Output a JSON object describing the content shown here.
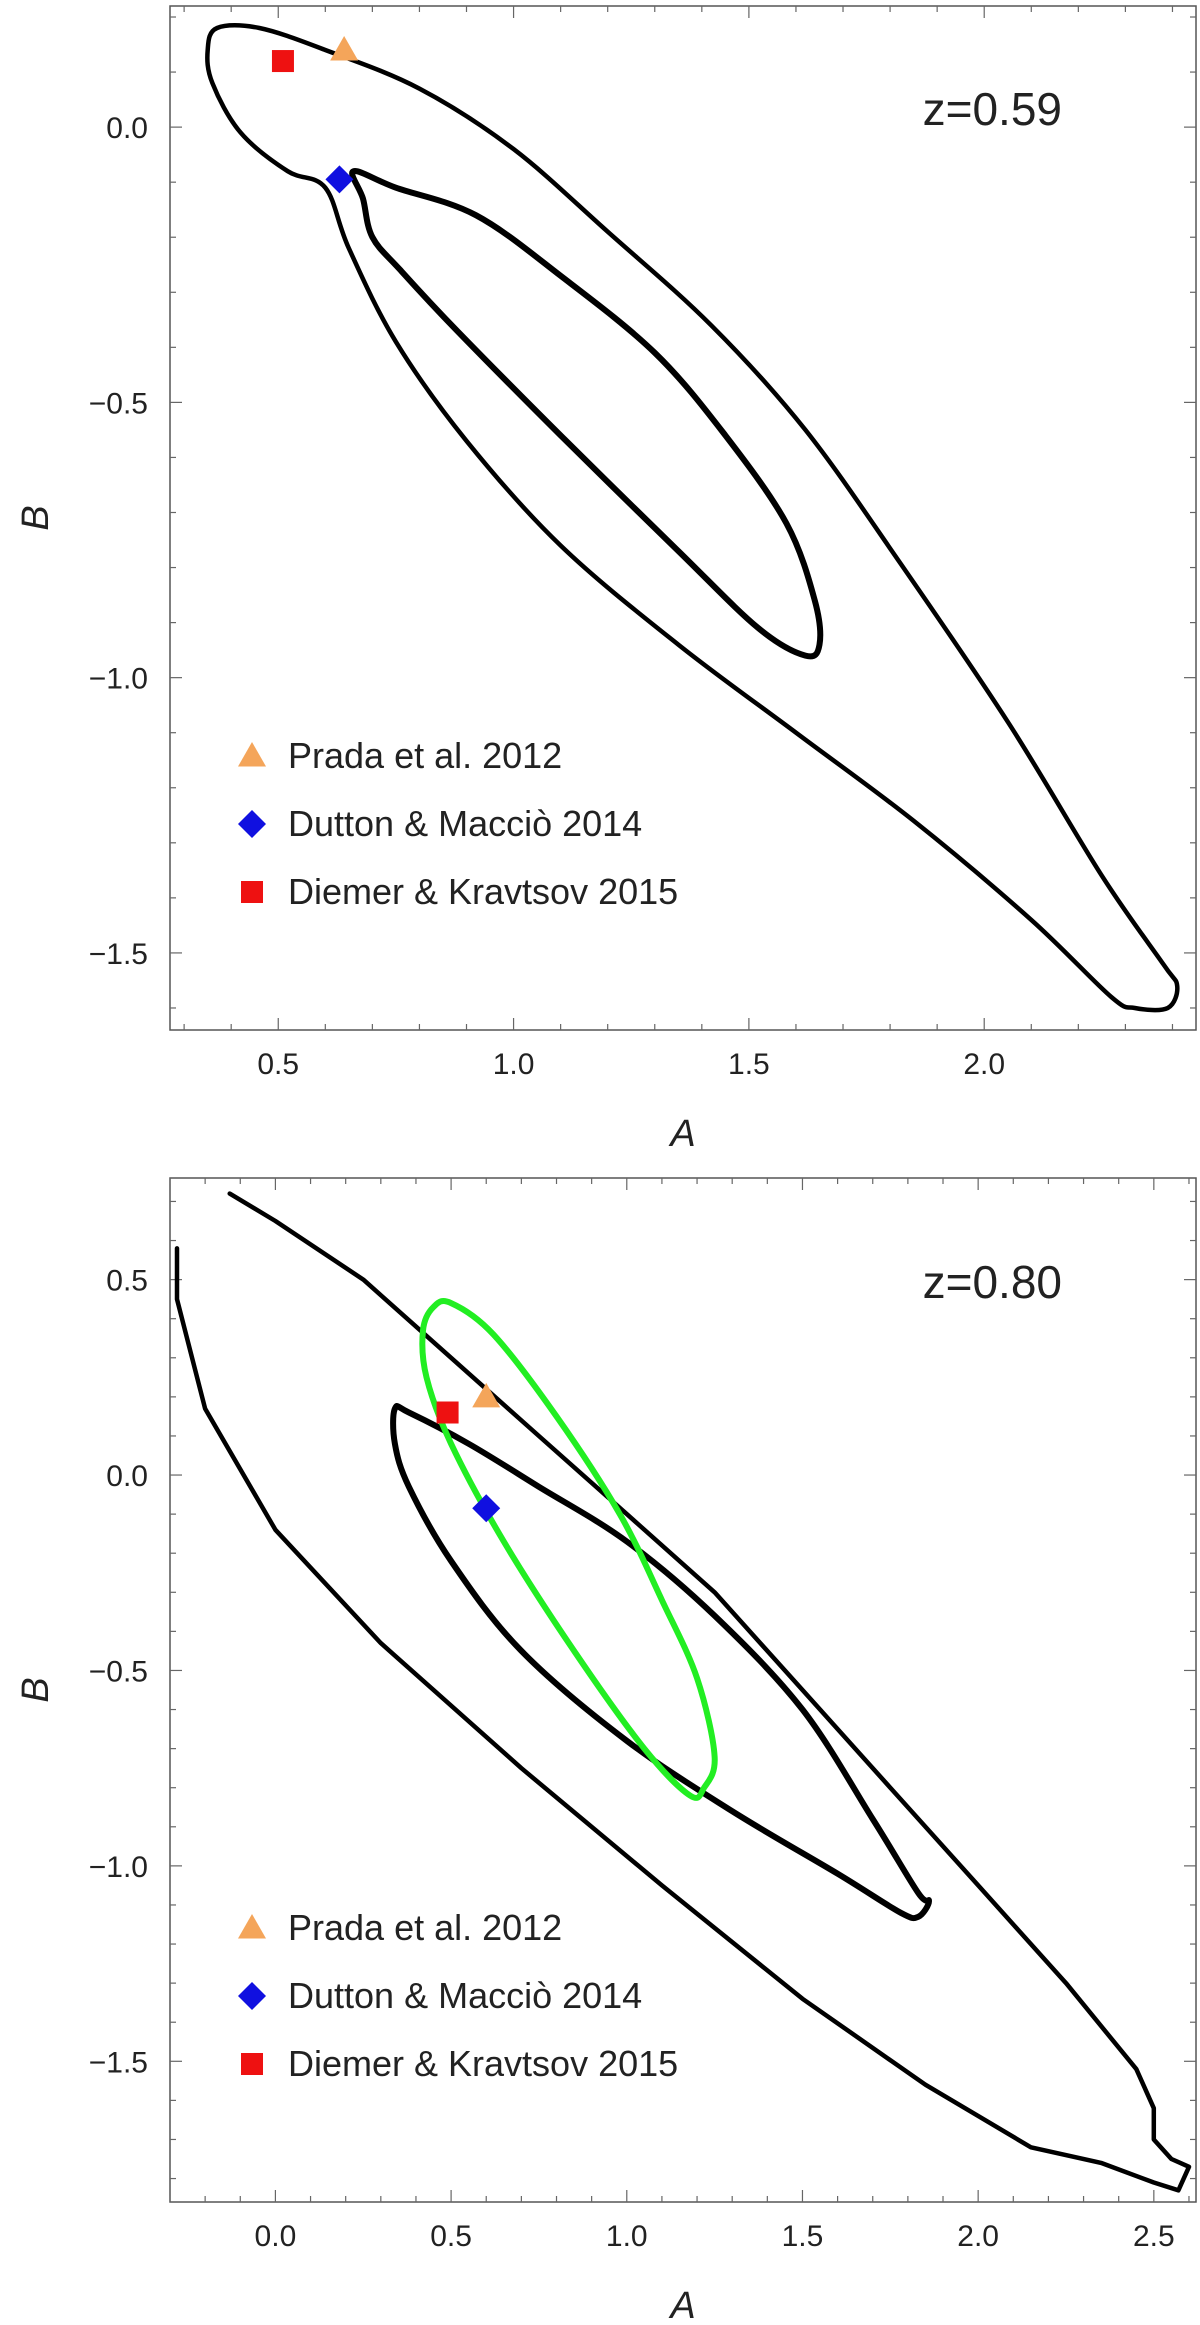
{
  "chart_data": [
    {
      "type": "scatter",
      "annotation": "z=0.59",
      "xlabel": "A",
      "ylabel": "B",
      "xlim": [
        0.27,
        2.45
      ],
      "ylim": [
        -1.64,
        0.22
      ],
      "xticks": [
        0.5,
        1.0,
        1.5,
        2.0
      ],
      "xtick_labels": [
        "0.5",
        "1.0",
        "1.5",
        "2.0"
      ],
      "yticks": [
        0.0,
        -0.5,
        -1.0,
        -1.5
      ],
      "ytick_labels": [
        "0.0",
        "−0.5",
        "−1.0",
        "−1.5"
      ],
      "contours": [
        {
          "style": "inner",
          "color": "#000000",
          "points": [
            [
              0.66,
              -0.08
            ],
            [
              0.75,
              -0.11
            ],
            [
              0.92,
              -0.16
            ],
            [
              1.1,
              -0.27
            ],
            [
              1.3,
              -0.41
            ],
            [
              1.45,
              -0.56
            ],
            [
              1.58,
              -0.72
            ],
            [
              1.64,
              -0.86
            ],
            [
              1.65,
              -0.94
            ],
            [
              1.62,
              -0.96
            ],
            [
              1.52,
              -0.91
            ],
            [
              1.35,
              -0.77
            ],
            [
              1.1,
              -0.56
            ],
            [
              0.88,
              -0.37
            ],
            [
              0.76,
              -0.26
            ],
            [
              0.7,
              -0.2
            ],
            [
              0.68,
              -0.13
            ],
            [
              0.66,
              -0.08
            ]
          ]
        },
        {
          "style": "outer",
          "color": "#000000",
          "points": [
            [
              0.37,
              0.18
            ],
            [
              0.46,
              0.18
            ],
            [
              0.6,
              0.14
            ],
            [
              0.8,
              0.07
            ],
            [
              1.0,
              -0.04
            ],
            [
              1.2,
              -0.19
            ],
            [
              1.42,
              -0.36
            ],
            [
              1.62,
              -0.55
            ],
            [
              1.82,
              -0.79
            ],
            [
              2.05,
              -1.08
            ],
            [
              2.25,
              -1.36
            ],
            [
              2.38,
              -1.52
            ],
            [
              2.41,
              -1.56
            ],
            [
              2.39,
              -1.6
            ],
            [
              2.32,
              -1.6
            ],
            [
              2.27,
              -1.58
            ],
            [
              2.1,
              -1.44
            ],
            [
              1.85,
              -1.26
            ],
            [
              1.6,
              -1.1
            ],
            [
              1.35,
              -0.94
            ],
            [
              1.1,
              -0.76
            ],
            [
              0.9,
              -0.57
            ],
            [
              0.75,
              -0.39
            ],
            [
              0.65,
              -0.22
            ],
            [
              0.6,
              -0.11
            ],
            [
              0.52,
              -0.08
            ],
            [
              0.42,
              -0.01
            ],
            [
              0.36,
              0.08
            ],
            [
              0.35,
              0.14
            ],
            [
              0.37,
              0.18
            ]
          ]
        }
      ],
      "series": [
        {
          "name": "Prada et al. 2012",
          "marker": "triangle",
          "color": "#F4A55A",
          "x": 0.64,
          "y": 0.14
        },
        {
          "name": "Dutton & Macciò 2014",
          "marker": "diamond",
          "color": "#1010E0",
          "x": 0.63,
          "y": -0.095
        },
        {
          "name": "Diemer & Kravtsov 2015",
          "marker": "square",
          "color": "#EE1111",
          "x": 0.51,
          "y": 0.12
        }
      ]
    },
    {
      "type": "scatter",
      "annotation": "z=0.80",
      "xlabel": "A",
      "ylabel": "B",
      "xlim": [
        -0.3,
        2.62
      ],
      "ylim": [
        -1.86,
        0.76
      ],
      "xticks": [
        0.0,
        0.5,
        1.0,
        1.5,
        2.0,
        2.5
      ],
      "xtick_labels": [
        "0.0",
        "0.5",
        "1.0",
        "1.5",
        "2.0",
        "2.5"
      ],
      "yticks": [
        0.5,
        0.0,
        -0.5,
        -1.0,
        -1.5
      ],
      "ytick_labels": [
        "0.5",
        "0.0",
        "−0.5",
        "−1.0",
        "−1.5"
      ],
      "contours": [
        {
          "style": "inner",
          "color": "#000000",
          "points": [
            [
              0.34,
              0.17
            ],
            [
              0.38,
              0.16
            ],
            [
              0.55,
              0.08
            ],
            [
              0.75,
              -0.03
            ],
            [
              1.0,
              -0.17
            ],
            [
              1.25,
              -0.36
            ],
            [
              1.5,
              -0.6
            ],
            [
              1.7,
              -0.88
            ],
            [
              1.83,
              -1.07
            ],
            [
              1.86,
              -1.09
            ],
            [
              1.83,
              -1.13
            ],
            [
              1.78,
              -1.12
            ],
            [
              1.6,
              -1.02
            ],
            [
              1.3,
              -0.86
            ],
            [
              1.0,
              -0.68
            ],
            [
              0.7,
              -0.45
            ],
            [
              0.5,
              -0.22
            ],
            [
              0.38,
              -0.03
            ],
            [
              0.34,
              0.08
            ],
            [
              0.34,
              0.17
            ]
          ]
        },
        {
          "style": "outer",
          "color": "#000000",
          "points": [
            [
              -0.13,
              0.72
            ],
            [
              0.0,
              0.65
            ],
            [
              0.25,
              0.5
            ],
            [
              0.5,
              0.3
            ],
            [
              0.75,
              0.1
            ],
            [
              1.0,
              -0.1
            ],
            [
              1.25,
              -0.3
            ],
            [
              1.5,
              -0.55
            ],
            [
              1.75,
              -0.8
            ],
            [
              2.0,
              -1.05
            ],
            [
              2.25,
              -1.3
            ],
            [
              2.45,
              -1.52
            ],
            [
              2.5,
              -1.62
            ],
            [
              2.5,
              -1.7
            ],
            [
              2.55,
              -1.75
            ],
            [
              2.6,
              -1.77
            ],
            [
              2.57,
              -1.83
            ],
            [
              2.5,
              -1.81
            ],
            [
              2.35,
              -1.76
            ],
            [
              2.15,
              -1.72
            ],
            [
              1.85,
              -1.56
            ],
            [
              1.5,
              -1.34
            ],
            [
              1.1,
              -1.05
            ],
            [
              0.7,
              -0.75
            ],
            [
              0.3,
              -0.43
            ],
            [
              0.0,
              -0.14
            ],
            [
              -0.2,
              0.17
            ],
            [
              -0.28,
              0.45
            ],
            [
              -0.28,
              0.58
            ]
          ]
        },
        {
          "style": "green",
          "color": "#22EE22",
          "points": [
            [
              0.45,
              0.43
            ],
            [
              0.5,
              0.44
            ],
            [
              0.62,
              0.36
            ],
            [
              0.8,
              0.15
            ],
            [
              0.98,
              -0.1
            ],
            [
              1.1,
              -0.32
            ],
            [
              1.2,
              -0.52
            ],
            [
              1.25,
              -0.72
            ],
            [
              1.22,
              -0.8
            ],
            [
              1.18,
              -0.82
            ],
            [
              1.05,
              -0.7
            ],
            [
              0.85,
              -0.45
            ],
            [
              0.65,
              -0.17
            ],
            [
              0.5,
              0.08
            ],
            [
              0.43,
              0.25
            ],
            [
              0.42,
              0.37
            ],
            [
              0.45,
              0.43
            ]
          ]
        }
      ],
      "series": [
        {
          "name": "Prada et al. 2012",
          "marker": "triangle",
          "color": "#F4A55A",
          "x": 0.6,
          "y": 0.2
        },
        {
          "name": "Dutton & Macciò 2014",
          "marker": "diamond",
          "color": "#1010E0",
          "x": 0.6,
          "y": -0.085
        },
        {
          "name": "Diemer & Kravtsov 2015",
          "marker": "square",
          "color": "#EE1111",
          "x": 0.49,
          "y": 0.16
        }
      ]
    }
  ]
}
